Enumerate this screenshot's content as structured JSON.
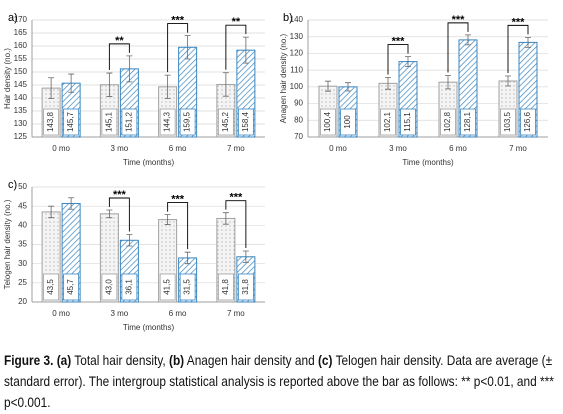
{
  "chart_data": [
    {
      "type": "bar",
      "panel": "a)",
      "ylabel": "Hair density (no.)",
      "xlabel": "Time (months)",
      "categories": [
        "0 mo",
        "3 mo",
        "6 mo",
        "7 mo"
      ],
      "ylim": [
        125,
        170
      ],
      "yticks": [
        125,
        130,
        135,
        140,
        145,
        150,
        155,
        160,
        165,
        170
      ],
      "grid": true,
      "series": [
        {
          "color": "#a0a0a0",
          "pattern": "dots",
          "values": [
            143.8,
            145.1,
            144.3,
            145.2
          ],
          "value_labels": [
            "143,8",
            "145,1",
            "144,3",
            "145,2"
          ],
          "errors": [
            4,
            4.5,
            4.5,
            4.5
          ]
        },
        {
          "color": "#3a86c0",
          "pattern": "hatch",
          "values": [
            145.7,
            151.2,
            159.5,
            158.4
          ],
          "value_labels": [
            "145,7",
            "151,2",
            "159,5",
            "158,4"
          ],
          "errors": [
            3.5,
            5,
            4.5,
            5
          ]
        }
      ],
      "significance": [
        null,
        "**",
        "***",
        "**"
      ]
    },
    {
      "type": "bar",
      "panel": "b)",
      "ylabel": "Anagen hair density (no.)",
      "xlabel": "Time (months)",
      "categories": [
        "0 mo",
        "3 mo",
        "6 mo",
        "7 mo"
      ],
      "ylim": [
        70,
        140
      ],
      "yticks": [
        70,
        80,
        90,
        100,
        110,
        120,
        130,
        140
      ],
      "grid": true,
      "series": [
        {
          "color": "#a0a0a0",
          "pattern": "dots",
          "values": [
            100.4,
            102.1,
            102.8,
            103.5
          ],
          "value_labels": [
            "100,4",
            "102,1",
            "102,8",
            "103,5"
          ],
          "errors": [
            3,
            3.5,
            4,
            3
          ]
        },
        {
          "color": "#3a86c0",
          "pattern": "hatch",
          "values": [
            100,
            115.1,
            128.1,
            126.6
          ],
          "value_labels": [
            "100",
            "115,1",
            "128,1",
            "126,6"
          ],
          "errors": [
            2.5,
            3,
            3,
            3
          ]
        }
      ],
      "significance": [
        null,
        "***",
        "***",
        "***"
      ]
    },
    {
      "type": "bar",
      "panel": "c)",
      "ylabel": "Telogen hair density (no.)",
      "xlabel": "Time (months)",
      "categories": [
        "0 mo",
        "3 mo",
        "6 mo",
        "7 mo"
      ],
      "ylim": [
        20,
        50
      ],
      "yticks": [
        20,
        25,
        30,
        35,
        40,
        45,
        50
      ],
      "grid": true,
      "series": [
        {
          "color": "#a0a0a0",
          "pattern": "dots",
          "values": [
            43.5,
            43.0,
            41.5,
            41.8
          ],
          "value_labels": [
            "43,5",
            "43,0",
            "41,5",
            "41,8"
          ],
          "errors": [
            1.5,
            1,
            1.3,
            1.5
          ]
        },
        {
          "color": "#3a86c0",
          "pattern": "hatch",
          "values": [
            45.7,
            36.1,
            31.5,
            31.8
          ],
          "value_labels": [
            "45,7",
            "36,1",
            "31,5",
            "31,8"
          ],
          "errors": [
            1.5,
            1.5,
            1.5,
            1.5
          ]
        }
      ],
      "significance": [
        null,
        "***",
        "***",
        "***"
      ]
    }
  ],
  "caption": [
    {
      "text": "Figure 3. (a)",
      "bold": true
    },
    {
      "text": "Total hair density,",
      "bold": false
    },
    {
      "text": "(b)",
      "bold": true
    },
    {
      "text": "Anagen hair density and",
      "bold": false
    },
    {
      "text": "(c)",
      "bold": true
    },
    {
      "text": "Telogen hair density. Data are average (± standard error). The intergroup statistical analysis is reported above the bar as follows: ** p<0.01, and *** p<0.001.",
      "bold": false
    }
  ]
}
